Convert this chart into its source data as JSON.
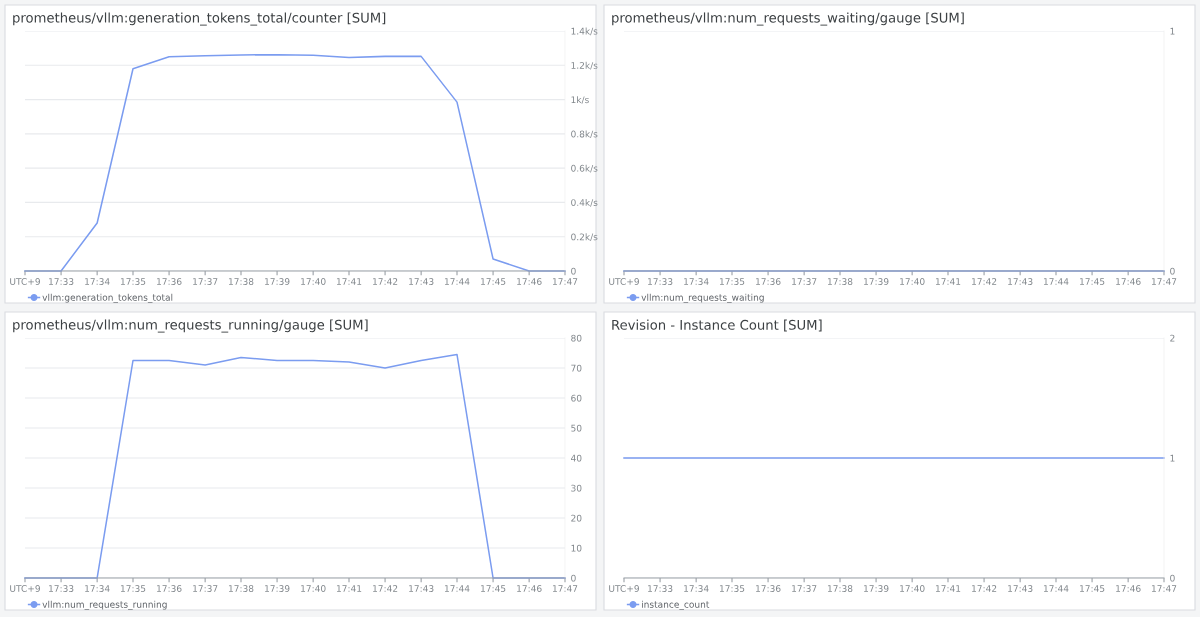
{
  "chart_data": [
    {
      "type": "line",
      "title": "prometheus/vllm:generation_tokens_total/counter [SUM]",
      "x": [
        17.5333,
        17.55,
        17.5667,
        17.5833,
        17.6,
        17.6167,
        17.6333,
        17.65,
        17.6667,
        17.6833,
        17.7,
        17.7167,
        17.7333,
        17.75,
        17.7667,
        17.7833
      ],
      "series": [
        {
          "name": "vllm:generation_tokens_total",
          "color": "#7b9cf0",
          "values": [
            0,
            0,
            280,
            1180,
            1250,
            1255,
            1260,
            1262,
            1258,
            1245,
            1252,
            1252,
            985,
            70,
            0,
            0
          ]
        }
      ],
      "xlim": [
        17.5333,
        17.7833
      ],
      "xticks": [
        {
          "value": 17.5333,
          "label": "UTC+9"
        },
        {
          "value": 17.55,
          "label": "17:33"
        },
        {
          "value": 17.5667,
          "label": "17:34"
        },
        {
          "value": 17.5833,
          "label": "17:35"
        },
        {
          "value": 17.6,
          "label": "17:36"
        },
        {
          "value": 17.6167,
          "label": "17:37"
        },
        {
          "value": 17.6333,
          "label": "17:38"
        },
        {
          "value": 17.65,
          "label": "17:39"
        },
        {
          "value": 17.6667,
          "label": "17:40"
        },
        {
          "value": 17.6833,
          "label": "17:41"
        },
        {
          "value": 17.7,
          "label": "17:42"
        },
        {
          "value": 17.7167,
          "label": "17:43"
        },
        {
          "value": 17.7333,
          "label": "17:44"
        },
        {
          "value": 17.75,
          "label": "17:45"
        },
        {
          "value": 17.7667,
          "label": "17:46"
        },
        {
          "value": 17.7833,
          "label": "17:47"
        }
      ],
      "ylim": [
        0,
        1400
      ],
      "yticks": [
        0,
        {
          "value": 200,
          "label": "0.2k/s"
        },
        {
          "value": 400,
          "label": "0.4k/s"
        },
        {
          "value": 600,
          "label": "0.6k/s"
        },
        {
          "value": 800,
          "label": "0.8k/s"
        },
        {
          "value": 1000,
          "label": "1k/s"
        },
        {
          "value": 1200,
          "label": "1.2k/s"
        },
        {
          "value": 1400,
          "label": "1.4k/s"
        }
      ],
      "grid": "y",
      "legend": "bottom left"
    },
    {
      "type": "line",
      "title": "prometheus/vllm:num_requests_waiting/gauge [SUM]",
      "x": [
        17.5333,
        17.55,
        17.5667,
        17.5833,
        17.6,
        17.6167,
        17.6333,
        17.65,
        17.6667,
        17.6833,
        17.7,
        17.7167,
        17.7333,
        17.75,
        17.7667,
        17.7833
      ],
      "series": [
        {
          "name": "vllm:num_requests_waiting",
          "color": "#7b9cf0",
          "values": [
            0,
            0,
            0,
            0,
            0,
            0,
            0,
            0,
            0,
            0,
            0,
            0,
            0,
            0,
            0,
            0
          ]
        }
      ],
      "xlim": [
        17.5333,
        17.7833
      ],
      "xticks": [
        {
          "value": 17.5333,
          "label": "UTC+9"
        },
        {
          "value": 17.55,
          "label": "17:33"
        },
        {
          "value": 17.5667,
          "label": "17:34"
        },
        {
          "value": 17.5833,
          "label": "17:35"
        },
        {
          "value": 17.6,
          "label": "17:36"
        },
        {
          "value": 17.6167,
          "label": "17:37"
        },
        {
          "value": 17.6333,
          "label": "17:38"
        },
        {
          "value": 17.65,
          "label": "17:39"
        },
        {
          "value": 17.6667,
          "label": "17:40"
        },
        {
          "value": 17.6833,
          "label": "17:41"
        },
        {
          "value": 17.7,
          "label": "17:42"
        },
        {
          "value": 17.7167,
          "label": "17:43"
        },
        {
          "value": 17.7333,
          "label": "17:44"
        },
        {
          "value": 17.75,
          "label": "17:45"
        },
        {
          "value": 17.7667,
          "label": "17:46"
        },
        {
          "value": 17.7833,
          "label": "17:47"
        }
      ],
      "ylim": [
        0,
        1
      ],
      "yticks": [
        0,
        1
      ],
      "grid": "y",
      "legend": "bottom left"
    },
    {
      "type": "line",
      "title": "prometheus/vllm:num_requests_running/gauge [SUM]",
      "x": [
        17.5333,
        17.55,
        17.5667,
        17.5833,
        17.6,
        17.6167,
        17.6333,
        17.65,
        17.6667,
        17.6833,
        17.7,
        17.7167,
        17.7333,
        17.75,
        17.7667,
        17.7833
      ],
      "series": [
        {
          "name": "vllm:num_requests_running",
          "color": "#7b9cf0",
          "values": [
            0,
            0,
            0,
            72.5,
            72.5,
            71,
            73.5,
            72.5,
            72.5,
            72,
            70,
            72.5,
            74.5,
            0,
            0,
            0
          ]
        }
      ],
      "xlim": [
        17.5333,
        17.7833
      ],
      "xticks": [
        {
          "value": 17.5333,
          "label": "UTC+9"
        },
        {
          "value": 17.55,
          "label": "17:33"
        },
        {
          "value": 17.5667,
          "label": "17:34"
        },
        {
          "value": 17.5833,
          "label": "17:35"
        },
        {
          "value": 17.6,
          "label": "17:36"
        },
        {
          "value": 17.6167,
          "label": "17:37"
        },
        {
          "value": 17.6333,
          "label": "17:38"
        },
        {
          "value": 17.65,
          "label": "17:39"
        },
        {
          "value": 17.6667,
          "label": "17:40"
        },
        {
          "value": 17.6833,
          "label": "17:41"
        },
        {
          "value": 17.7,
          "label": "17:42"
        },
        {
          "value": 17.7167,
          "label": "17:43"
        },
        {
          "value": 17.7333,
          "label": "17:44"
        },
        {
          "value": 17.75,
          "label": "17:45"
        },
        {
          "value": 17.7667,
          "label": "17:46"
        },
        {
          "value": 17.7833,
          "label": "17:47"
        }
      ],
      "ylim": [
        0,
        80
      ],
      "yticks": [
        0,
        10,
        20,
        30,
        40,
        50,
        60,
        70,
        80
      ],
      "grid": "y",
      "legend": "bottom left"
    },
    {
      "type": "line",
      "title": "Revision - Instance Count [SUM]",
      "x": [
        17.5333,
        17.55,
        17.5667,
        17.5833,
        17.6,
        17.6167,
        17.6333,
        17.65,
        17.6667,
        17.6833,
        17.7,
        17.7167,
        17.7333,
        17.75,
        17.7667,
        17.7833
      ],
      "series": [
        {
          "name": "instance_count",
          "color": "#7b9cf0",
          "values": [
            1,
            1,
            1,
            1,
            1,
            1,
            1,
            1,
            1,
            1,
            1,
            1,
            1,
            1,
            1,
            1
          ]
        }
      ],
      "xlim": [
        17.5333,
        17.7833
      ],
      "xticks": [
        {
          "value": 17.5333,
          "label": "UTC+9"
        },
        {
          "value": 17.55,
          "label": "17:33"
        },
        {
          "value": 17.5667,
          "label": "17:34"
        },
        {
          "value": 17.5833,
          "label": "17:35"
        },
        {
          "value": 17.6,
          "label": "17:36"
        },
        {
          "value": 17.6167,
          "label": "17:37"
        },
        {
          "value": 17.6333,
          "label": "17:38"
        },
        {
          "value": 17.65,
          "label": "17:39"
        },
        {
          "value": 17.6667,
          "label": "17:40"
        },
        {
          "value": 17.6833,
          "label": "17:41"
        },
        {
          "value": 17.7,
          "label": "17:42"
        },
        {
          "value": 17.7167,
          "label": "17:43"
        },
        {
          "value": 17.7333,
          "label": "17:44"
        },
        {
          "value": 17.75,
          "label": "17:45"
        },
        {
          "value": 17.7667,
          "label": "17:46"
        },
        {
          "value": 17.7833,
          "label": "17:47"
        }
      ],
      "ylim": [
        0,
        2
      ],
      "yticks": [
        0,
        1,
        2
      ],
      "grid": "y",
      "legend": "bottom left"
    }
  ]
}
